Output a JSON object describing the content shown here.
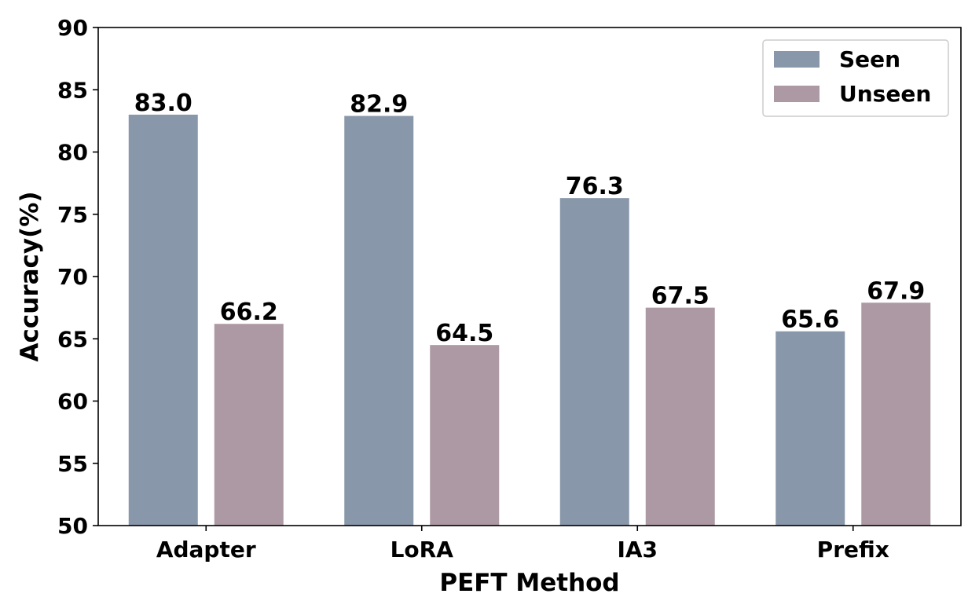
{
  "chart_data": {
    "type": "bar",
    "categories": [
      "Adapter",
      "LoRA",
      "IA3",
      "Prefix"
    ],
    "series": [
      {
        "name": "Seen",
        "values": [
          83.0,
          82.9,
          76.3,
          65.6
        ],
        "color": "#8997aa"
      },
      {
        "name": "Unseen",
        "values": [
          66.2,
          64.5,
          67.5,
          67.9
        ],
        "color": "#ad99a3"
      }
    ],
    "data_labels": [
      [
        "83.0",
        "82.9",
        "76.3",
        "65.6"
      ],
      [
        "66.2",
        "64.5",
        "67.5",
        "67.9"
      ]
    ],
    "title": "",
    "xlabel": "PEFT Method",
    "ylabel": "Accuracy(%)",
    "ylim": [
      50,
      90
    ],
    "yticks": [
      50,
      55,
      60,
      65,
      70,
      75,
      80,
      85,
      90
    ],
    "grid": false,
    "legend_position": "top-right"
  }
}
